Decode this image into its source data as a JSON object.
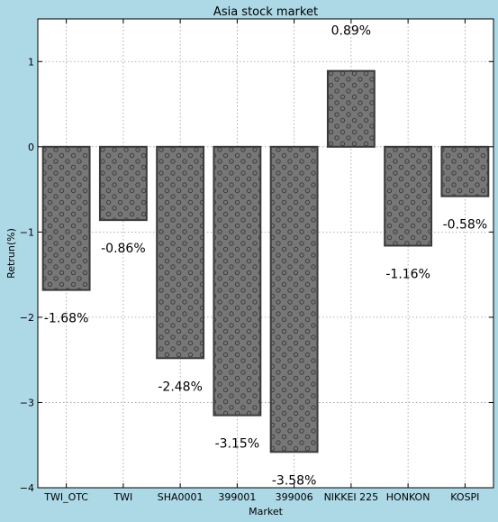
{
  "chart_data": {
    "type": "bar",
    "title": "Asia stock market",
    "xlabel": "Market",
    "ylabel": "Retrun(%)",
    "categories": [
      "TWI_OTC",
      "TWI",
      "SHA0001",
      "399001",
      "399006",
      "NIKKEI 225",
      "HONKON",
      "KOSPI"
    ],
    "values": [
      -1.68,
      -0.86,
      -2.48,
      -3.15,
      -3.58,
      0.89,
      -1.16,
      -0.58
    ],
    "data_labels": [
      "-1.68%",
      "-0.86%",
      "-2.48%",
      "-3.15%",
      "-3.58%",
      "0.89%",
      "-1.16%",
      "-0.58%"
    ],
    "ylim": [
      -4,
      1.5
    ],
    "yticks": [
      -4,
      -3,
      -2,
      -1,
      0,
      1
    ],
    "ytick_labels": [
      "−4",
      "−3",
      "−2",
      "−1",
      "0",
      "1"
    ],
    "grid": true,
    "colors": {
      "background": "#add8e6",
      "plot_area": "#ffffff",
      "bar_fill": "#777777",
      "bar_edge": "#3a3a3a",
      "hatch": "#3c3c3c",
      "grid": "#9a9a9a"
    }
  }
}
